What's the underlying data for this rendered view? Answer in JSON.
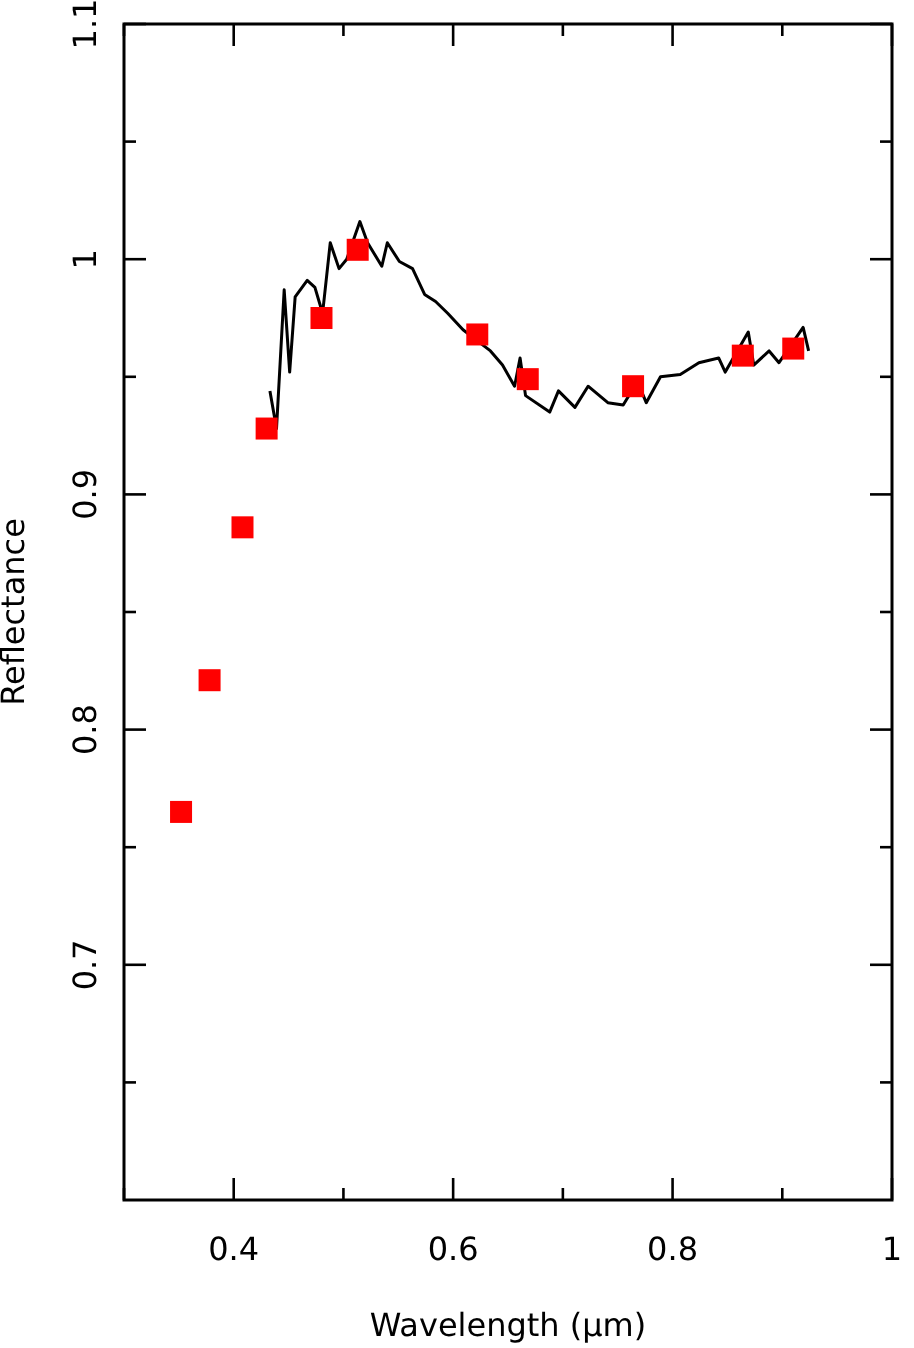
{
  "chart_data": {
    "type": "scatter",
    "xlabel": "Wavelength (μm)",
    "ylabel": "Reflectance",
    "xlim": [
      0.3,
      1
    ],
    "ylim": [
      0.6,
      1.1
    ],
    "xticks": [
      {
        "value": 0.3,
        "label": null
      },
      0.4,
      {
        "value": 0.5,
        "label": null
      },
      0.6,
      {
        "value": 0.7,
        "label": null
      },
      0.8,
      {
        "value": 0.9,
        "label": null
      },
      1
    ],
    "yticks": [
      {
        "value": 0.65,
        "label": null
      },
      0.7,
      {
        "value": 0.75,
        "label": null
      },
      0.8,
      {
        "value": 0.85,
        "label": null
      },
      0.9,
      {
        "value": 0.95,
        "label": null
      },
      1,
      {
        "value": 1.05,
        "label": null
      },
      1.1
    ],
    "series": [
      {
        "type": "line",
        "color": "#000000",
        "marker": "none",
        "x": [
          0.433,
          0.439,
          0.446,
          0.451,
          0.456,
          0.467,
          0.474,
          0.481,
          0.488,
          0.496,
          0.503,
          0.515,
          0.522,
          0.535,
          0.54,
          0.551,
          0.563,
          0.574,
          0.584,
          0.595,
          0.609,
          0.634,
          0.645,
          0.656,
          0.661,
          0.666,
          0.688,
          0.696,
          0.711,
          0.723,
          0.741,
          0.755,
          0.768,
          0.776,
          0.789,
          0.807,
          0.824,
          0.842,
          0.848,
          0.869,
          0.874,
          0.888,
          0.897,
          0.919,
          0.924
        ],
        "values": [
          0.944,
          0.928,
          0.987,
          0.952,
          0.984,
          0.991,
          0.988,
          0.977,
          1.007,
          0.996,
          1.0,
          1.016,
          1.007,
          0.997,
          1.007,
          0.999,
          0.996,
          0.985,
          0.982,
          0.977,
          0.97,
          0.961,
          0.955,
          0.946,
          0.958,
          0.942,
          0.935,
          0.944,
          0.937,
          0.946,
          0.939,
          0.938,
          0.948,
          0.939,
          0.95,
          0.951,
          0.956,
          0.958,
          0.952,
          0.969,
          0.955,
          0.961,
          0.956,
          0.971,
          0.961
        ]
      },
      {
        "color": "#ff0000",
        "marker": "square",
        "x": [
          0.352,
          0.378,
          0.408,
          0.43,
          0.48,
          0.513,
          0.622,
          0.668,
          0.764,
          0.864,
          0.91
        ],
        "values": [
          0.765,
          0.821,
          0.886,
          0.928,
          0.975,
          1.004,
          0.968,
          0.949,
          0.946,
          0.959,
          0.962
        ]
      }
    ]
  }
}
